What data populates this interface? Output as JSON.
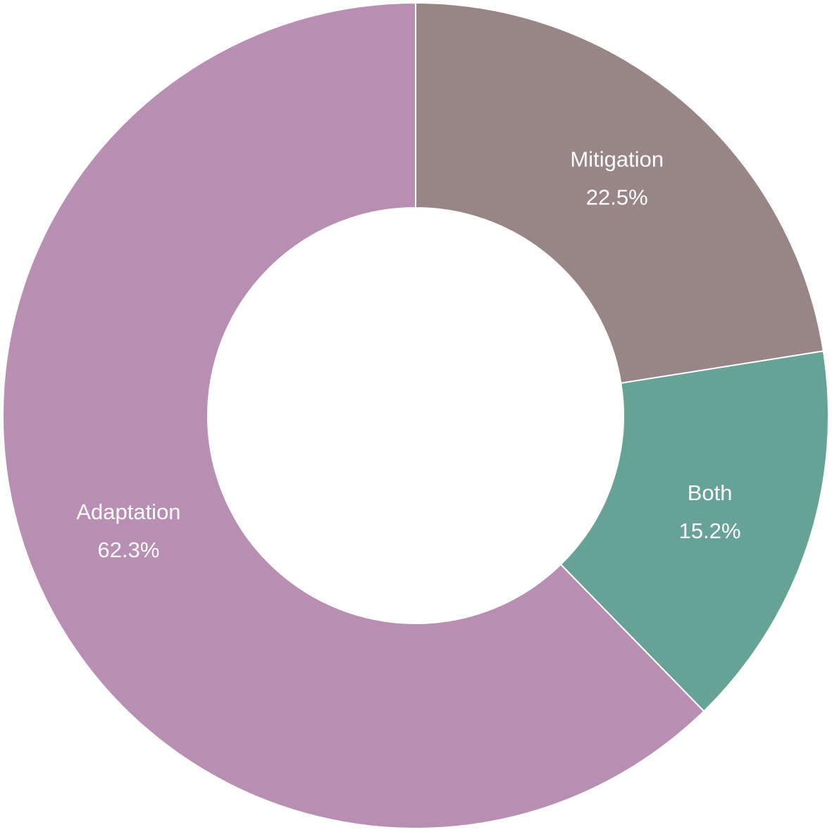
{
  "chart_data": {
    "type": "donut",
    "categories": [
      "Mitigation",
      "Both",
      "Adaptation"
    ],
    "values": [
      22.5,
      15.2,
      62.3
    ],
    "value_labels": [
      "22.5%",
      "15.2%",
      "62.3%"
    ],
    "colors": [
      "#978685",
      "#66a396",
      "#b88fb2"
    ]
  }
}
